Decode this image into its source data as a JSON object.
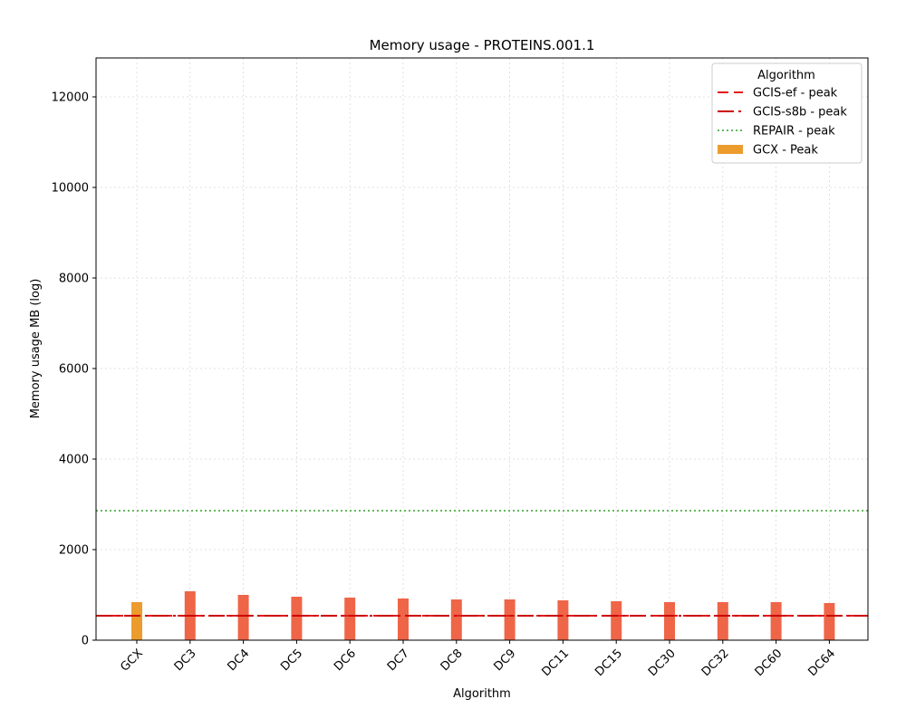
{
  "chart_data": {
    "type": "bar",
    "title": "Memory usage -  PROTEINS.001.1",
    "xlabel": "Algorithm",
    "ylabel": "Memory usage MB (log)",
    "ylim": [
      0,
      12860
    ],
    "yticks": [
      0,
      2000,
      4000,
      6000,
      8000,
      10000,
      12000
    ],
    "grid": true,
    "legend_placement": "top-right",
    "legend_title": "Algorithm",
    "categories": [
      "GCX",
      "DC3",
      "DC4",
      "DC5",
      "DC6",
      "DC7",
      "DC8",
      "DC9",
      "DC11",
      "DC15",
      "DC30",
      "DC32",
      "DC60",
      "DC64"
    ],
    "series": [
      {
        "name": "GCX - Peak",
        "color": "#ec9c2d",
        "values": [
          840,
          null,
          null,
          null,
          null,
          null,
          null,
          null,
          null,
          null,
          null,
          null,
          null,
          null
        ]
      },
      {
        "color": "#ef6548",
        "values": [
          null,
          1080,
          1000,
          960,
          940,
          920,
          900,
          900,
          880,
          860,
          840,
          840,
          840,
          820
        ]
      }
    ],
    "reference_lines": [
      {
        "name": "GCIS-ef  - peak",
        "value": 540,
        "color": "#e31a1c",
        "style": "dashed"
      },
      {
        "name": "GCIS-s8b  - peak",
        "value": 540,
        "color": "#cc0000",
        "style": "dashdot"
      },
      {
        "name": "REPAIR  - peak",
        "value": 2860,
        "color": "#33a02c",
        "style": "dotted"
      }
    ]
  }
}
